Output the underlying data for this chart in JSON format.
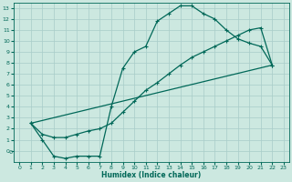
{
  "bg_color": "#cce8e0",
  "grid_color": "#a8ccc8",
  "line_color": "#006858",
  "xlabel": "Humidex (Indice chaleur)",
  "xlim": [
    -0.5,
    23.5
  ],
  "ylim": [
    -1.0,
    13.5
  ],
  "xticks": [
    0,
    1,
    2,
    3,
    4,
    5,
    6,
    7,
    8,
    9,
    10,
    11,
    12,
    13,
    14,
    15,
    16,
    17,
    18,
    19,
    20,
    21,
    22,
    23
  ],
  "yticks": [
    0,
    1,
    2,
    3,
    4,
    5,
    6,
    7,
    8,
    9,
    10,
    11,
    12,
    13
  ],
  "ytick_labels": [
    "0",
    "1",
    "2",
    "3",
    "4",
    "5",
    "6",
    "7",
    "8",
    "9",
    "10",
    "11",
    "12",
    "13"
  ],
  "curve1_x": [
    1,
    2,
    3,
    4,
    5,
    6,
    7,
    8,
    9,
    10,
    11,
    12,
    13,
    14,
    15,
    16,
    17,
    18,
    19,
    20,
    21,
    22
  ],
  "curve1_y": [
    2.5,
    1.0,
    -0.5,
    -0.7,
    -0.5,
    -0.5,
    -0.5,
    4.0,
    7.5,
    9.0,
    9.5,
    11.8,
    12.5,
    13.2,
    13.2,
    12.5,
    12.0,
    11.0,
    10.2,
    9.8,
    9.5,
    7.8
  ],
  "curve2_x": [
    1,
    2,
    3,
    4,
    5,
    6,
    7,
    8,
    9,
    10,
    11,
    12,
    13,
    14,
    15,
    16,
    17,
    18,
    19,
    20,
    21,
    22
  ],
  "curve2_y": [
    2.5,
    1.5,
    1.2,
    1.2,
    1.5,
    1.8,
    2.0,
    2.5,
    3.5,
    4.5,
    5.5,
    6.2,
    7.0,
    7.8,
    8.5,
    9.0,
    9.5,
    10.0,
    10.5,
    11.0,
    11.2,
    7.8
  ],
  "curve3_x": [
    1,
    22
  ],
  "curve3_y": [
    2.5,
    7.8
  ]
}
